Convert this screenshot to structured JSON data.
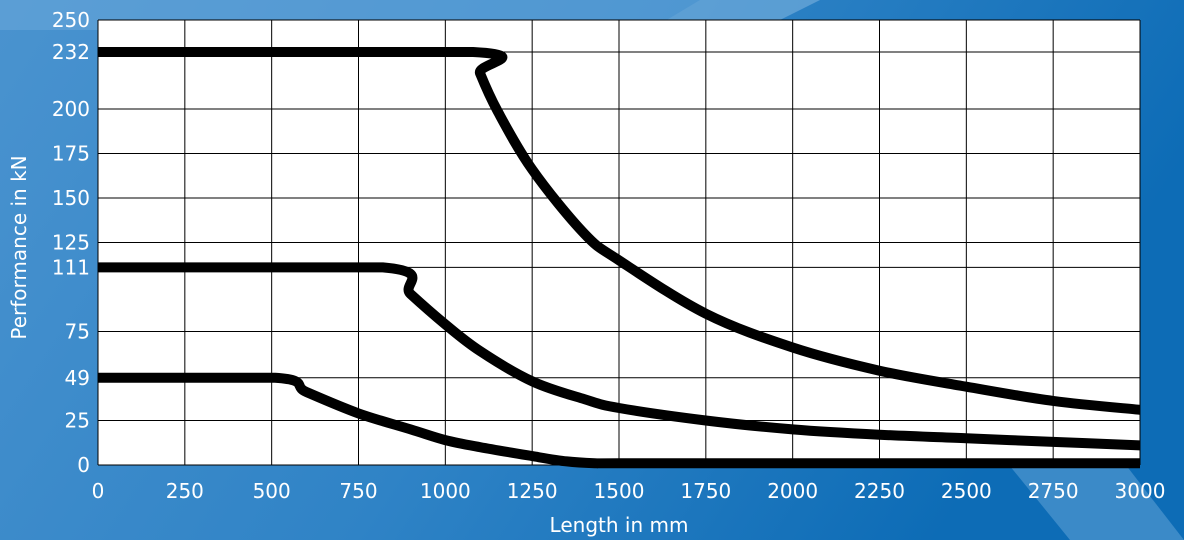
{
  "chart_data": {
    "type": "line",
    "xlabel": "Length in mm",
    "ylabel": "Performance in kN",
    "xlim": [
      0,
      3000
    ],
    "ylim": [
      0,
      250
    ],
    "x_ticks": [
      0,
      250,
      500,
      750,
      1000,
      1250,
      1500,
      1750,
      2000,
      2250,
      2500,
      2750,
      3000
    ],
    "y_ticks": [
      0,
      25,
      49,
      75,
      111,
      125,
      150,
      175,
      200,
      232,
      250
    ],
    "grid": true,
    "legend": "none",
    "series": [
      {
        "x": [
          0,
          1080,
          1100,
          1150,
          1250,
          1400,
          1500,
          1750,
          2000,
          2250,
          2500,
          2750,
          3000
        ],
        "values": [
          232,
          232,
          220,
          199,
          166,
          130,
          115,
          85,
          66,
          53,
          44,
          36,
          31
        ]
      },
      {
        "x": [
          0,
          820,
          900,
          1000,
          1100,
          1250,
          1400,
          1500,
          1750,
          2000,
          2250,
          2500,
          2750,
          3000
        ],
        "values": [
          111,
          111,
          96,
          79,
          64,
          47,
          37,
          32,
          25,
          20,
          17,
          15,
          13,
          11
        ]
      },
      {
        "x": [
          0,
          510,
          600,
          750,
          900,
          1000,
          1100,
          1250,
          1350,
          1430,
          1500,
          2000,
          2500,
          3000
        ],
        "values": [
          49,
          49,
          41,
          29,
          20,
          14,
          10,
          5,
          2,
          1,
          1,
          1,
          1,
          1
        ]
      }
    ]
  },
  "colors": {
    "background_dark": "#0a6bb8",
    "background_light": "#5b9fd4",
    "plot_area": "#ffffff",
    "grid": "#000000",
    "curve": "#000000",
    "text": "#ffffff"
  }
}
